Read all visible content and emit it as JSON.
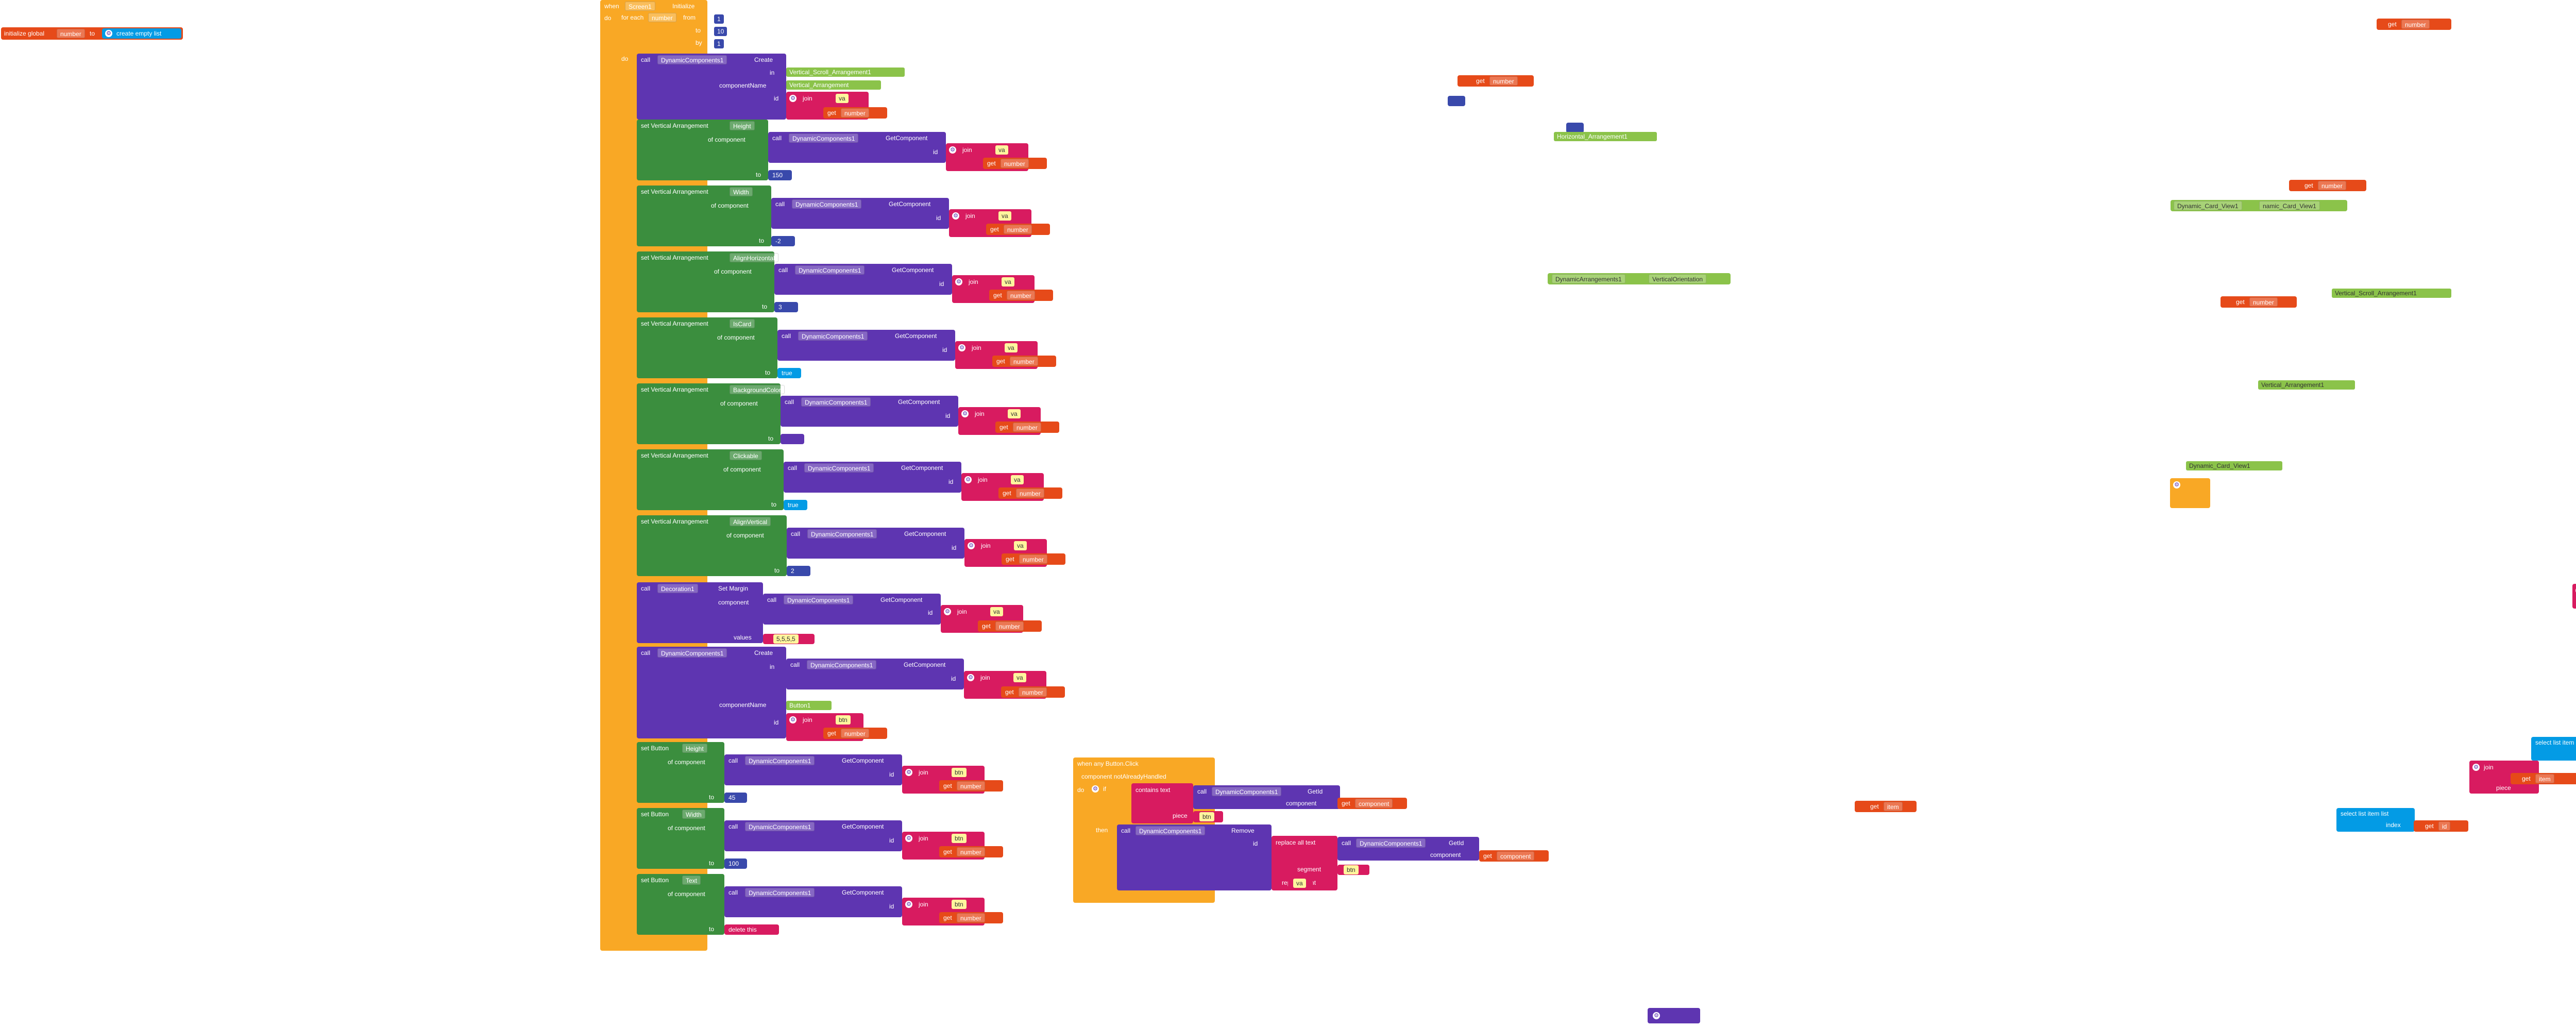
{
  "workspace": {
    "global_init": {
      "label": "initialize global",
      "name": "number",
      "to": "to",
      "value": "create empty list"
    },
    "event": {
      "when": "when",
      "component": "Screen1",
      "event": "Initialize",
      "do": "do"
    },
    "for_each": {
      "label": "for each",
      "var": "number",
      "from": "from",
      "from_val": "1",
      "to": "to",
      "to_val": "10",
      "by": "by",
      "by_val": "1",
      "do": "do"
    },
    "common": {
      "call": "call",
      "dyncomp": "DynamicComponents1",
      "create": "Create",
      "in": "in",
      "componentName": "componentName",
      "id": "id",
      "join": "join",
      "get": "get",
      "number": "number",
      "of_component": "of component",
      "to": "to",
      "getcomponent": "GetComponent",
      "set_va": "set Vertical Arrangement",
      "set_button": "set Button",
      "component": "component",
      "values": "values"
    },
    "create1": {
      "in_val": "Vertical_Scroll_Arrangement1",
      "name_val": "Vertical_Arrangement",
      "join_text": "va"
    },
    "sets": [
      {
        "prop": "Height",
        "value": "150",
        "join_text": "va"
      },
      {
        "prop": "Width",
        "value": "-2",
        "join_text": "va"
      },
      {
        "prop": "AlignHorizontal",
        "value": "3",
        "join_text": "va"
      },
      {
        "prop": "IsCard",
        "value": "true",
        "join_text": "va"
      },
      {
        "prop": "BackgroundColor",
        "value": "",
        "join_text": "va"
      },
      {
        "prop": "Clickable",
        "value": "true",
        "join_text": "va"
      },
      {
        "prop": "AlignVertical",
        "value": "2",
        "join_text": "va"
      }
    ],
    "margin": {
      "comp": "Decoration1",
      "method": "Set Margin",
      "values_val": "5,5,5,5",
      "join_text": "va"
    },
    "create2": {
      "name_val": "Button1",
      "join_text": "btn",
      "join_text2": "va"
    },
    "button_sets": [
      {
        "prop": "Height",
        "value": "45",
        "join_text": "btn"
      },
      {
        "prop": "Width",
        "value": "100",
        "join_text": "btn"
      },
      {
        "prop": "Text",
        "value": "delete this",
        "join_text": "btn"
      }
    ],
    "any_click": {
      "title": "when any Button.Click",
      "params": "component   notAlreadyHandled",
      "do": "do",
      "if": "if",
      "contains_text": "contains text",
      "getid": "GetId",
      "component_lbl": "component",
      "get_component": "component",
      "piece": "piece",
      "piece_val": "btn",
      "then": "then",
      "remove": "Remove",
      "replace": "replace all text",
      "segment": "segment",
      "segment_val": "btn",
      "replacement": "replacement",
      "replacement_val": "va"
    },
    "loose": {
      "get_number": "number",
      "horizontal": "Horizontal_Arrangement1",
      "dyn_arr": "DynamicArrangements1",
      "vert_orient": "VerticalOrientation",
      "card_view1": "Dynamic_Card_View1",
      "card_view2": "namic_Card_View1",
      "vsa": "Vertical_Scroll_Arrangement1",
      "va1": "Vertical_Arrangement1",
      "card_view3": "Dynamic_Card_View1",
      "get_item": "item",
      "get_id": "id",
      "select_list": "select list item  list",
      "index": "index",
      "piece": "piece",
      "join_va": "va",
      "get_a": "a",
      "get_b": "b"
    }
  }
}
